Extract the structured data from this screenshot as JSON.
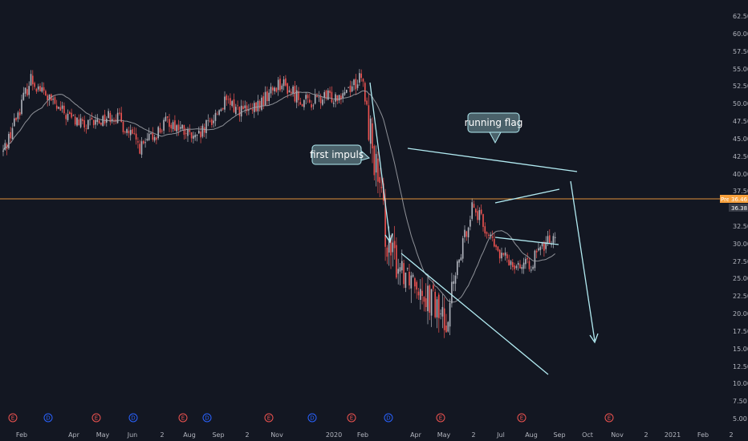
{
  "chart_data": {
    "type": "candlestick",
    "x_tick_labels": [
      "Feb",
      "Apr",
      "May",
      "Jun",
      "2",
      "Aug",
      "Sep",
      "2",
      "Nov",
      "2020",
      "Feb",
      "Apr",
      "May",
      "2",
      "Jul",
      "Aug",
      "Sep",
      "Oct",
      "Nov",
      "2",
      "2021",
      "Feb",
      "2"
    ],
    "y_tick_labels": [
      "62.50",
      "60.00",
      "57.50",
      "55.00",
      "52.50",
      "50.00",
      "47.50",
      "45.00",
      "42.50",
      "40.00",
      "37.50",
      "32.50",
      "30.00",
      "27.50",
      "25.00",
      "22.50",
      "20.00",
      "17.50",
      "15.00",
      "12.50",
      "10.00",
      "7.50",
      "5.00"
    ],
    "ylim": [
      4,
      65
    ],
    "price_scale": "linear",
    "grid": false,
    "price_points": [
      {
        "x": "2019-01",
        "y": 48.0
      },
      {
        "x": "2019-02",
        "y": 58.5
      },
      {
        "x": "2019-03",
        "y": 54.0
      },
      {
        "x": "2019-04",
        "y": 51.5
      },
      {
        "x": "2019-05",
        "y": 53.5
      },
      {
        "x": "2019-06",
        "y": 48.5
      },
      {
        "x": "2019-07",
        "y": 52.5
      },
      {
        "x": "2019-08",
        "y": 49.5
      },
      {
        "x": "2019-09",
        "y": 55.0
      },
      {
        "x": "2019-10",
        "y": 53.5
      },
      {
        "x": "2019-11",
        "y": 58.0
      },
      {
        "x": "2019-12",
        "y": 55.0
      },
      {
        "x": "2020-01",
        "y": 56.0
      },
      {
        "x": "2020-02",
        "y": 58.5
      },
      {
        "x": "2020-03",
        "y": 33.0
      },
      {
        "x": "2020-04",
        "y": 30.0
      },
      {
        "x": "2020-05",
        "y": 23.5
      },
      {
        "x": "2020-06",
        "y": 40.5
      },
      {
        "x": "2020-07",
        "y": 33.0
      },
      {
        "x": "2020-08",
        "y": 31.5
      },
      {
        "x": "2020-09",
        "y": 36.5
      }
    ],
    "current_price": "36.46",
    "current_price_2": "36.38",
    "price_tag_prefix": "Pre",
    "annotations": [
      {
        "text": "first impuls"
      },
      {
        "text": "running flag"
      }
    ],
    "events": [
      "E",
      "D",
      "E",
      "D",
      "E",
      "D",
      "E",
      "D",
      "E",
      "D",
      "E",
      "E",
      "E"
    ],
    "colors": {
      "background": "#131722",
      "candle_up": "#b2b5be",
      "candle_down": "#ef5350",
      "moving_average": "#a5a7ad",
      "trendline": "#b2ebf2",
      "price_line": "#f7a03c",
      "earnings_marker": "#ef5350",
      "dividend_marker": "#2962ff"
    }
  }
}
